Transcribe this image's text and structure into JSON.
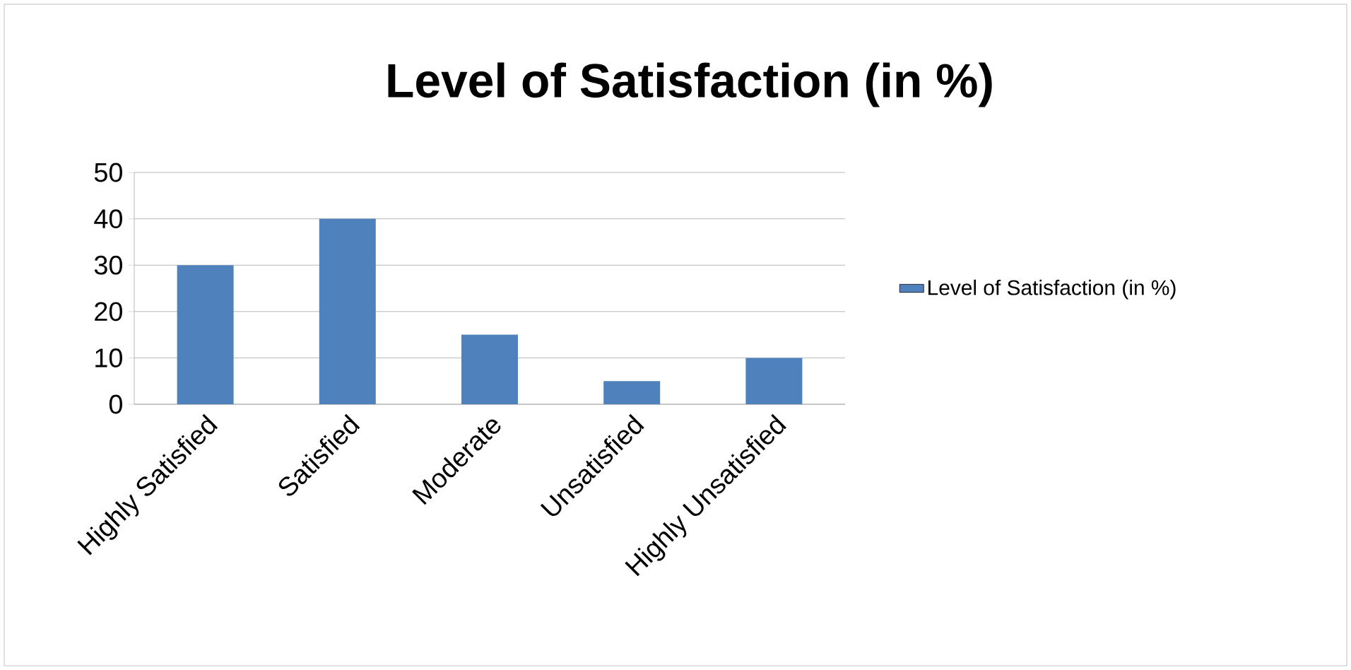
{
  "chart_data": {
    "type": "bar",
    "title": "Level of Satisfaction (in %)",
    "categories": [
      "Highly Satisfied",
      "Satisfied",
      "Moderate",
      "Unsatisfied",
      "Highly Unsatisfied"
    ],
    "series": [
      {
        "name": "Level of Satisfaction (in %)",
        "color": "#4f81bd",
        "values": [
          30,
          40,
          15,
          5,
          10
        ]
      }
    ],
    "ylim": [
      0,
      50
    ],
    "yticks": [
      0,
      10,
      20,
      30,
      40,
      50
    ],
    "grid": "y",
    "legend": "right"
  }
}
